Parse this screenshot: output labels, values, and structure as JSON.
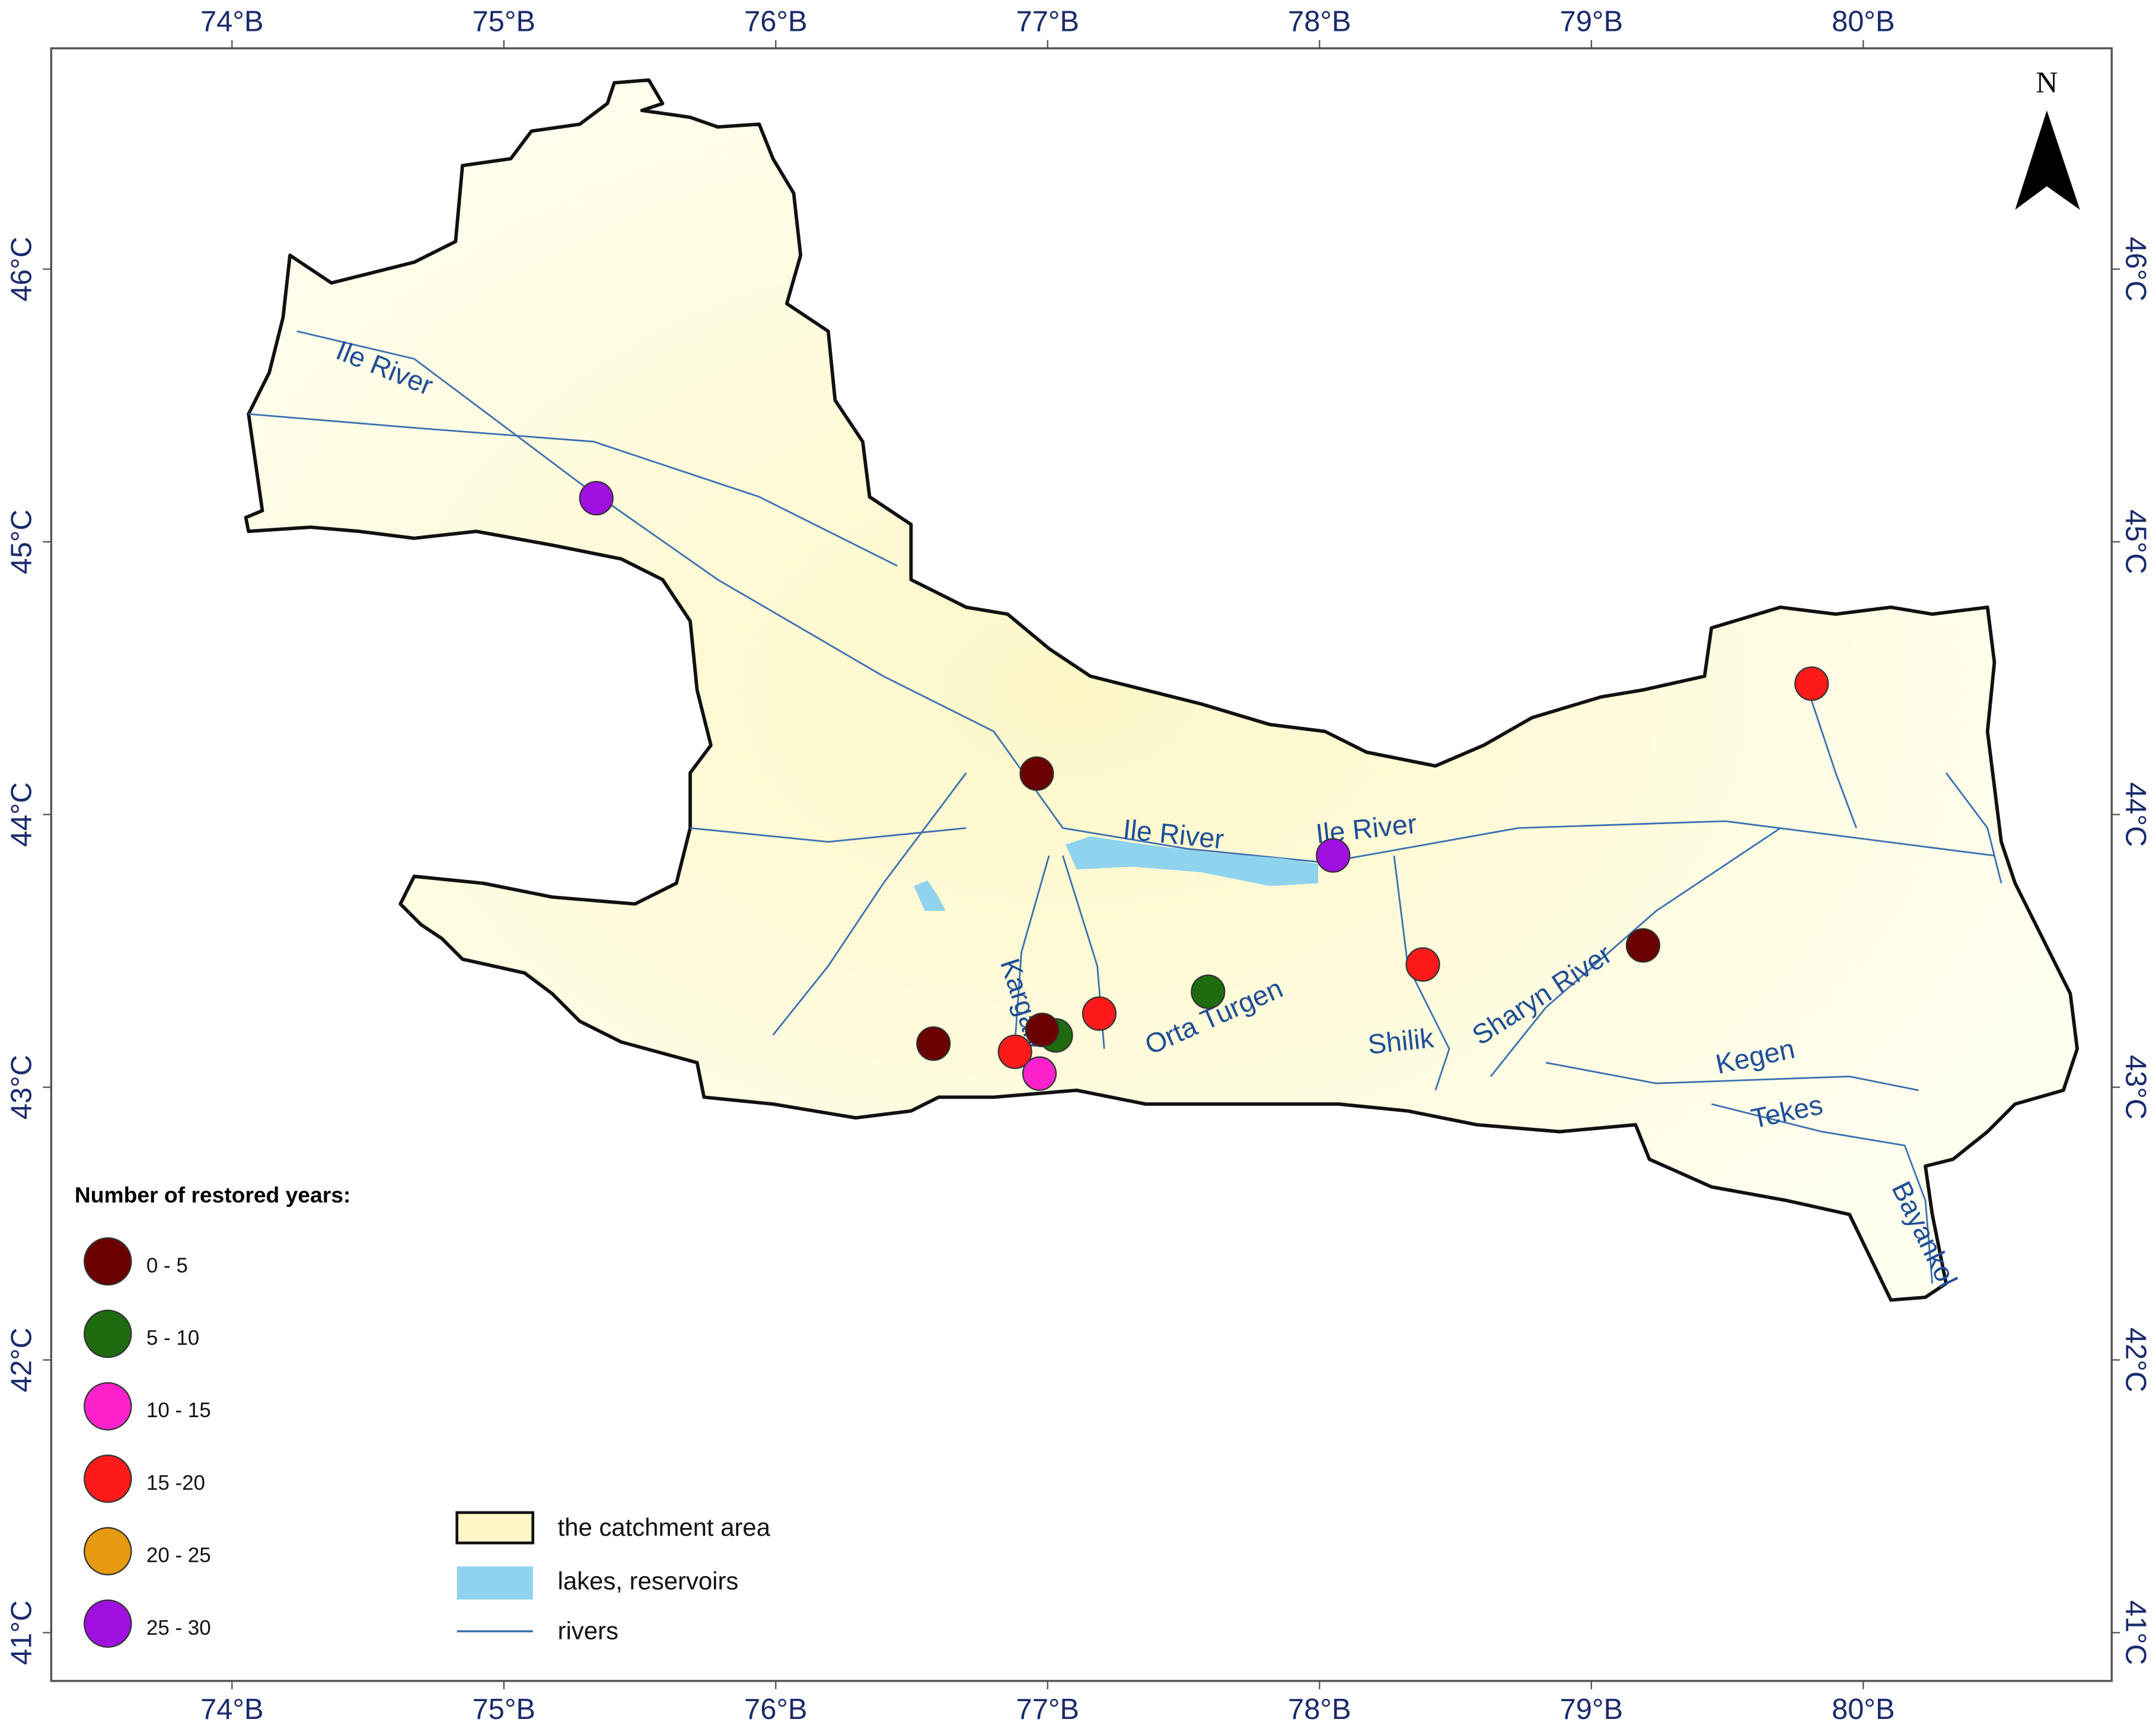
{
  "map": {
    "x_ticks": [
      {
        "value": 74,
        "label": "74°B"
      },
      {
        "value": 75,
        "label": "75°B"
      },
      {
        "value": 76,
        "label": "76°B"
      },
      {
        "value": 77,
        "label": "77°B"
      },
      {
        "value": 78,
        "label": "78°B"
      },
      {
        "value": 79,
        "label": "79°B"
      },
      {
        "value": 80,
        "label": "80°B"
      }
    ],
    "y_ticks": [
      {
        "value": 46,
        "label": "46°C"
      },
      {
        "value": 45,
        "label": "45°C"
      },
      {
        "value": 44,
        "label": "44°C"
      },
      {
        "value": 43,
        "label": "43°C"
      },
      {
        "value": 42,
        "label": "42°C"
      },
      {
        "value": 41,
        "label": "41°C"
      }
    ],
    "north": "N",
    "river_labels": [
      "Ile River",
      "Ile River",
      "Ile River",
      "Kargaly",
      "Orta Turgen",
      "Shilik",
      "Sharyn River",
      "Kegen",
      "Tekes",
      "Bayankol"
    ],
    "stations": [
      {
        "lon": 75.34,
        "lat": 45.16,
        "color": "#a010e0"
      },
      {
        "lon": 76.96,
        "lat": 44.15,
        "color": "#6b0000"
      },
      {
        "lon": 79.81,
        "lat": 44.48,
        "color": "#ff1a1a"
      },
      {
        "lon": 78.05,
        "lat": 43.85,
        "color": "#a010e0"
      },
      {
        "lon": 79.19,
        "lat": 43.52,
        "color": "#6b0000"
      },
      {
        "lon": 78.38,
        "lat": 43.45,
        "color": "#ff1a1a"
      },
      {
        "lon": 77.59,
        "lat": 43.35,
        "color": "#1e6b10"
      },
      {
        "lon": 77.19,
        "lat": 43.27,
        "color": "#ff1a1a"
      },
      {
        "lon": 77.03,
        "lat": 43.19,
        "color": "#1e6b10"
      },
      {
        "lon": 76.58,
        "lat": 43.16,
        "color": "#6b0000"
      },
      {
        "lon": 76.88,
        "lat": 43.13,
        "color": "#ff1a1a"
      },
      {
        "lon": 76.98,
        "lat": 43.21,
        "color": "#6b0000"
      },
      {
        "lon": 76.97,
        "lat": 43.05,
        "color": "#ff22cc"
      }
    ],
    "legend": {
      "title": "Number of restored years:",
      "items": [
        {
          "label": "0 - 5",
          "color": "#6b0000"
        },
        {
          "label": "5 - 10",
          "color": "#1e6b10"
        },
        {
          "label": "10 - 15",
          "color": "#ff22cc"
        },
        {
          "label": "15 -20",
          "color": "#ff1a1a"
        },
        {
          "label": "20 - 25",
          "color": "#e69a10"
        },
        {
          "label": "25 - 30",
          "color": "#a010e0"
        }
      ]
    },
    "map_legend": {
      "catchment": "the catchment area",
      "lakes": "lakes, reservoirs",
      "rivers": "rivers"
    }
  }
}
